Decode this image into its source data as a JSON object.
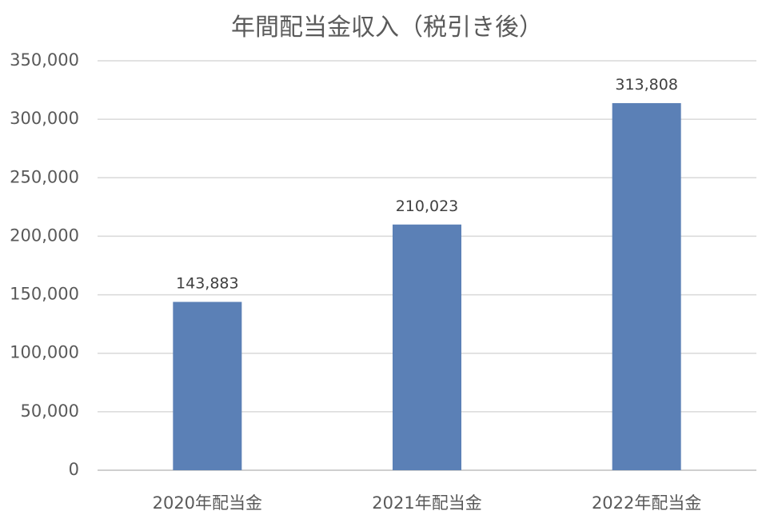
{
  "chart_data": {
    "type": "bar",
    "title": "年間配当金収入（税引き後）",
    "categories": [
      "2020年配当金",
      "2021年配当金",
      "2022年配当金"
    ],
    "values": [
      143883,
      210023,
      313808
    ],
    "data_labels": [
      "143,883",
      "210,023",
      "313,808"
    ],
    "ylim": [
      0,
      350000
    ],
    "yticks": [
      0,
      50000,
      100000,
      150000,
      200000,
      250000,
      300000,
      350000
    ],
    "ytick_labels": [
      "0",
      "50,000",
      "100,000",
      "150,000",
      "200,000",
      "250,000",
      "300,000",
      "350,000"
    ],
    "grid": true,
    "legend": "none",
    "bar_color": "#5b80b6",
    "xlabel": "",
    "ylabel": ""
  }
}
